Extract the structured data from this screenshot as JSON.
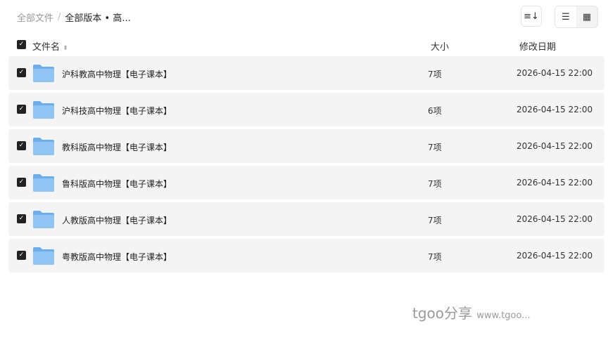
{
  "breadcrumb": {
    "root": "全部文件",
    "separator": "/",
    "current": "全部版本 • 高..."
  },
  "toolbar": {
    "sort_icon": "sort-icon",
    "list_icon": "list-view-icon",
    "grid_icon": "grid-view-icon"
  },
  "header": {
    "name": "文件名",
    "size": "大小",
    "date": "修改日期"
  },
  "rows": [
    {
      "name": "沪科教高中物理【电子课本】",
      "size": "7项",
      "date": "2026-04-15 22:00"
    },
    {
      "name": "沪科技高中物理【电子课本】",
      "size": "6项",
      "date": "2026-04-15 22:00"
    },
    {
      "name": "教科版高中物理【电子课本】",
      "size": "7项",
      "date": "2026-04-15 22:00"
    },
    {
      "name": "鲁科版高中物理【电子课本】",
      "size": "7项",
      "date": "2026-04-15 22:00"
    },
    {
      "name": "人教版高中物理【电子课本】",
      "size": "7项",
      "date": "2026-04-15 22:00"
    },
    {
      "name": "粤教版高中物理【电子课本】",
      "size": "7项",
      "date": "2026-04-15 22:00"
    }
  ],
  "watermark": {
    "brand": "tgoo分享",
    "url": "www.tgoo..."
  },
  "colors": {
    "row_bg": "#f4f4f4",
    "folder": "#7fb8f0",
    "checkbox": "#222222"
  }
}
